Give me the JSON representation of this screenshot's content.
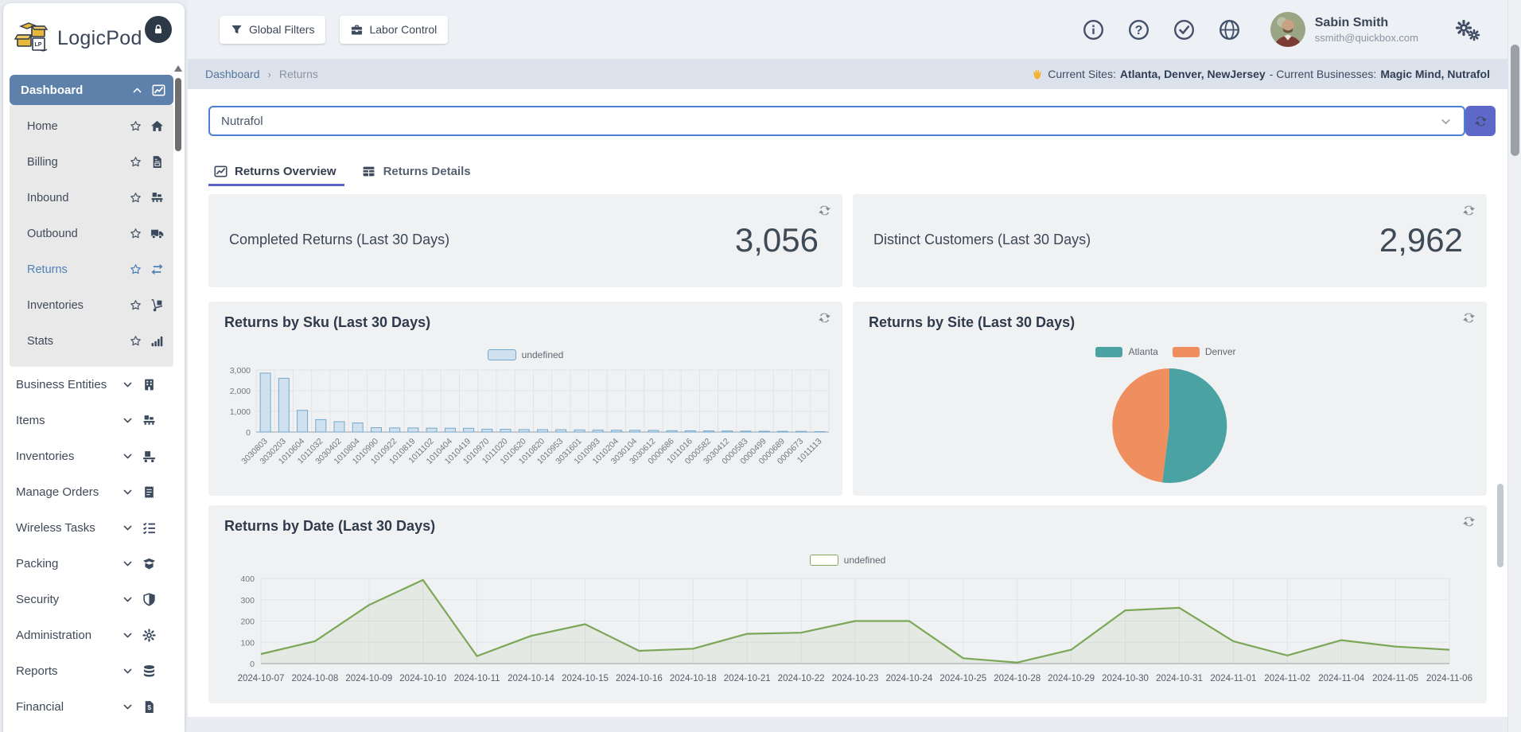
{
  "app": {
    "name": "LogicPod"
  },
  "header": {
    "buttons": [
      {
        "label": "Global Filters",
        "icon": "filter"
      },
      {
        "label": "Labor Control",
        "icon": "briefcase"
      }
    ],
    "status_icons": [
      "info",
      "help",
      "check-circle",
      "globe"
    ],
    "user": {
      "name": "Sabin Smith",
      "email": "ssmith@quickbox.com"
    }
  },
  "breadcrumb": {
    "parent": "Dashboard",
    "current": "Returns",
    "sites_label": "Current Sites:",
    "sites": "Atlanta, Denver, NewJersey",
    "businesses_label": "- Current Businesses:",
    "businesses": "Magic Mind, Nutrafol"
  },
  "filter_select": {
    "value": "Nutrafol"
  },
  "tabs": [
    {
      "label": "Returns Overview",
      "icon": "chart-line",
      "active": true
    },
    {
      "label": "Returns Details",
      "icon": "table",
      "active": false
    }
  ],
  "sidebar": {
    "sections": [
      {
        "label": "Dashboard",
        "icon": "chart-line",
        "expanded": true,
        "children": [
          {
            "label": "Home",
            "icon": "home"
          },
          {
            "label": "Billing",
            "icon": "file-invoice"
          },
          {
            "label": "Inbound",
            "icon": "pallet-boxes"
          },
          {
            "label": "Outbound",
            "icon": "truck"
          },
          {
            "label": "Returns",
            "icon": "exchange",
            "active": true
          },
          {
            "label": "Inventories",
            "icon": "dolly"
          },
          {
            "label": "Stats",
            "icon": "signal-bars"
          }
        ]
      },
      {
        "label": "Business Entities",
        "icon": "building"
      },
      {
        "label": "Items",
        "icon": "pallet-boxes"
      },
      {
        "label": "Inventories",
        "icon": "dolly-flatbed"
      },
      {
        "label": "Manage Orders",
        "icon": "receipt"
      },
      {
        "label": "Wireless Tasks",
        "icon": "task-list"
      },
      {
        "label": "Packing",
        "icon": "box-open"
      },
      {
        "label": "Security",
        "icon": "shield"
      },
      {
        "label": "Administration",
        "icon": "gear"
      },
      {
        "label": "Reports",
        "icon": "database"
      },
      {
        "label": "Financial",
        "icon": "file-invoice-dollar"
      }
    ]
  },
  "cards": [
    {
      "title": "Completed Returns (Last 30 Days)",
      "value": "3,056"
    },
    {
      "title": "Distinct Customers (Last 30 Days)",
      "value": "2,962"
    }
  ],
  "colors": {
    "accent": "#5d68c9",
    "sidebar_active": "#5d81ab",
    "link_blue": "#4f81b8",
    "bar_fill": "#cfe0ee",
    "bar_border": "#74a9cc",
    "pie_atlanta": "#4aa3a2",
    "pie_denver": "#ef8e5e",
    "line_green": "#7ca757"
  },
  "chart_data": [
    {
      "id": "returns_by_sku",
      "type": "bar",
      "title": "Returns by Sku (Last 30 Days)",
      "legend": [
        "undefined"
      ],
      "categories": [
        "3030803",
        "3030203",
        "1010604",
        "1011032",
        "3030402",
        "1010804",
        "1010990",
        "1010922",
        "1010819",
        "1011102",
        "1010404",
        "1010419",
        "1010970",
        "1011020",
        "1010620",
        "1010820",
        "1010953",
        "3031601",
        "1010993",
        "1010204",
        "3030104",
        "3030612",
        "0000686",
        "1011016",
        "0000582",
        "3030412",
        "0000583",
        "0000499",
        "0000689",
        "0000673",
        "1011113"
      ],
      "values": [
        2850,
        2600,
        1050,
        600,
        500,
        440,
        210,
        200,
        195,
        190,
        185,
        180,
        140,
        135,
        120,
        115,
        110,
        105,
        95,
        90,
        85,
        80,
        65,
        60,
        55,
        50,
        45,
        40,
        35,
        30,
        20
      ],
      "ylim": [
        0,
        3000
      ],
      "yticks": [
        0,
        1000,
        2000,
        3000
      ],
      "ytick_labels": [
        "0",
        "1,000",
        "2,000",
        "3,000"
      ],
      "bar_fill": "#cfe0ee",
      "bar_border": "#74a9cc",
      "grid": true
    },
    {
      "id": "returns_by_site",
      "type": "pie",
      "title": "Returns by Site (Last 30 Days)",
      "legend_position": "top",
      "slices": [
        {
          "label": "Atlanta",
          "value": 52,
          "color": "#4aa3a2"
        },
        {
          "label": "Denver",
          "value": 48,
          "color": "#ef8e5e"
        }
      ]
    },
    {
      "id": "returns_by_date",
      "type": "line",
      "title": "Returns by Date (Last 30 Days)",
      "legend": [
        "undefined"
      ],
      "x": [
        "2024-10-07",
        "2024-10-08",
        "2024-10-09",
        "2024-10-10",
        "2024-10-11",
        "2024-10-14",
        "2024-10-15",
        "2024-10-16",
        "2024-10-18",
        "2024-10-21",
        "2024-10-22",
        "2024-10-23",
        "2024-10-24",
        "2024-10-25",
        "2024-10-28",
        "2024-10-29",
        "2024-10-30",
        "2024-10-31",
        "2024-11-01",
        "2024-11-02",
        "2024-11-04",
        "2024-11-05",
        "2024-11-06"
      ],
      "values": [
        45,
        105,
        275,
        393,
        35,
        130,
        185,
        60,
        70,
        140,
        145,
        200,
        200,
        25,
        5,
        65,
        250,
        262,
        105,
        38,
        110,
        80,
        65
      ],
      "ylim": [
        0,
        400
      ],
      "yticks": [
        0,
        100,
        200,
        300,
        400
      ],
      "line_color": "#7ca757",
      "area_fill": "rgba(124,167,87,0.10)",
      "grid": true
    }
  ]
}
